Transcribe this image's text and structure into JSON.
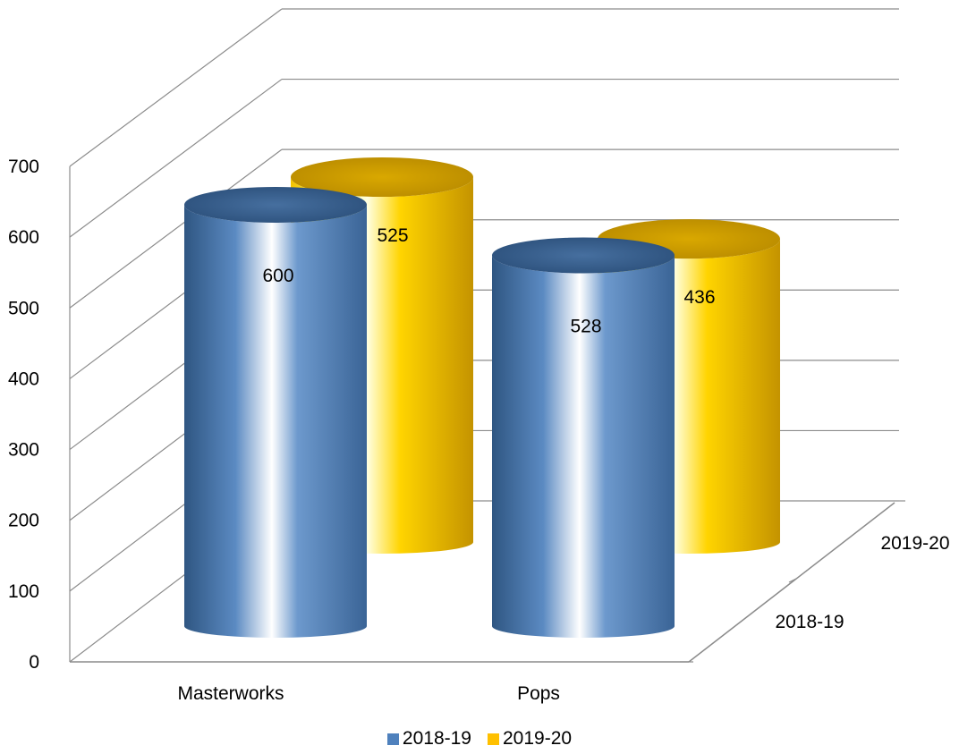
{
  "chart_data": {
    "type": "bar",
    "style": "3d-cylinder",
    "categories": [
      "Masterworks",
      "Pops"
    ],
    "series": [
      {
        "name": "2018-19",
        "values": [
          600,
          528
        ],
        "color": "#4F81BD"
      },
      {
        "name": "2019-20",
        "values": [
          525,
          436
        ],
        "color": "#FFC000"
      }
    ],
    "depth_labels": [
      "2018-19",
      "2019-20"
    ],
    "yticks": [
      "0",
      "100",
      "200",
      "300",
      "400",
      "500",
      "600",
      "700"
    ],
    "ylim": [
      0,
      700
    ],
    "grid": true,
    "legend_position": "bottom"
  }
}
